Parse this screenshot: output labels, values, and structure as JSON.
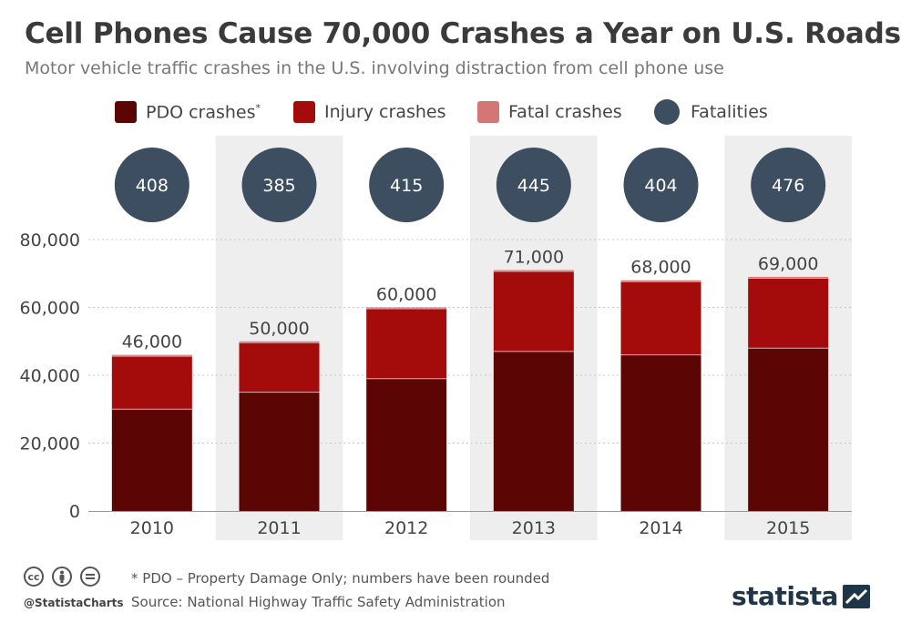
{
  "title": "Cell Phones Cause 70,000 Crashes a Year on U.S. Roads",
  "subtitle": "Motor vehicle traffic crashes in the U.S. involving distraction from cell phone use",
  "colors": {
    "pdo": "#5c0505",
    "injury": "#a40b0b",
    "fatal": "#d47676",
    "fatalities": "#3c4e60",
    "band": "#eeeeee"
  },
  "legend": [
    {
      "label": "PDO crashes",
      "suffix": "*",
      "color": "#5c0505",
      "shape": "square"
    },
    {
      "label": "Injury crashes",
      "suffix": "",
      "color": "#a40b0b",
      "shape": "square"
    },
    {
      "label": "Fatal crashes",
      "suffix": "",
      "color": "#d47676",
      "shape": "square"
    },
    {
      "label": "Fatalities",
      "suffix": "",
      "color": "#3c4e60",
      "shape": "circle"
    }
  ],
  "chart_data": {
    "type": "bar",
    "stacked": true,
    "categories": [
      "2010",
      "2011",
      "2012",
      "2013",
      "2014",
      "2015"
    ],
    "series": [
      {
        "name": "PDO crashes",
        "values": [
          30000,
          35000,
          39000,
          47000,
          46000,
          48000
        ]
      },
      {
        "name": "Injury crashes",
        "values": [
          15600,
          14600,
          20600,
          23600,
          21600,
          20600
        ]
      },
      {
        "name": "Fatal crashes",
        "values": [
          400,
          400,
          400,
          400,
          400,
          400
        ]
      }
    ],
    "totals": [
      "46,000",
      "50,000",
      "60,000",
      "71,000",
      "68,000",
      "69,000"
    ],
    "fatalities": [
      408,
      385,
      415,
      445,
      404,
      476
    ],
    "y_ticks": [
      "0",
      "20,000",
      "40,000",
      "60,000",
      "80,000"
    ],
    "ylim": [
      0,
      80000
    ],
    "grid": true,
    "shaded_categories": [
      "2011",
      "2013",
      "2015"
    ],
    "legend_position": "top"
  },
  "footer": {
    "handle": "@StatistaCharts",
    "note": "* PDO – Property Damage Only; numbers have been rounded",
    "source": "Source: National Highway Traffic Safety Administration",
    "brand": "statista",
    "license_icons": [
      "cc-icon",
      "by-icon",
      "nd-icon"
    ]
  }
}
